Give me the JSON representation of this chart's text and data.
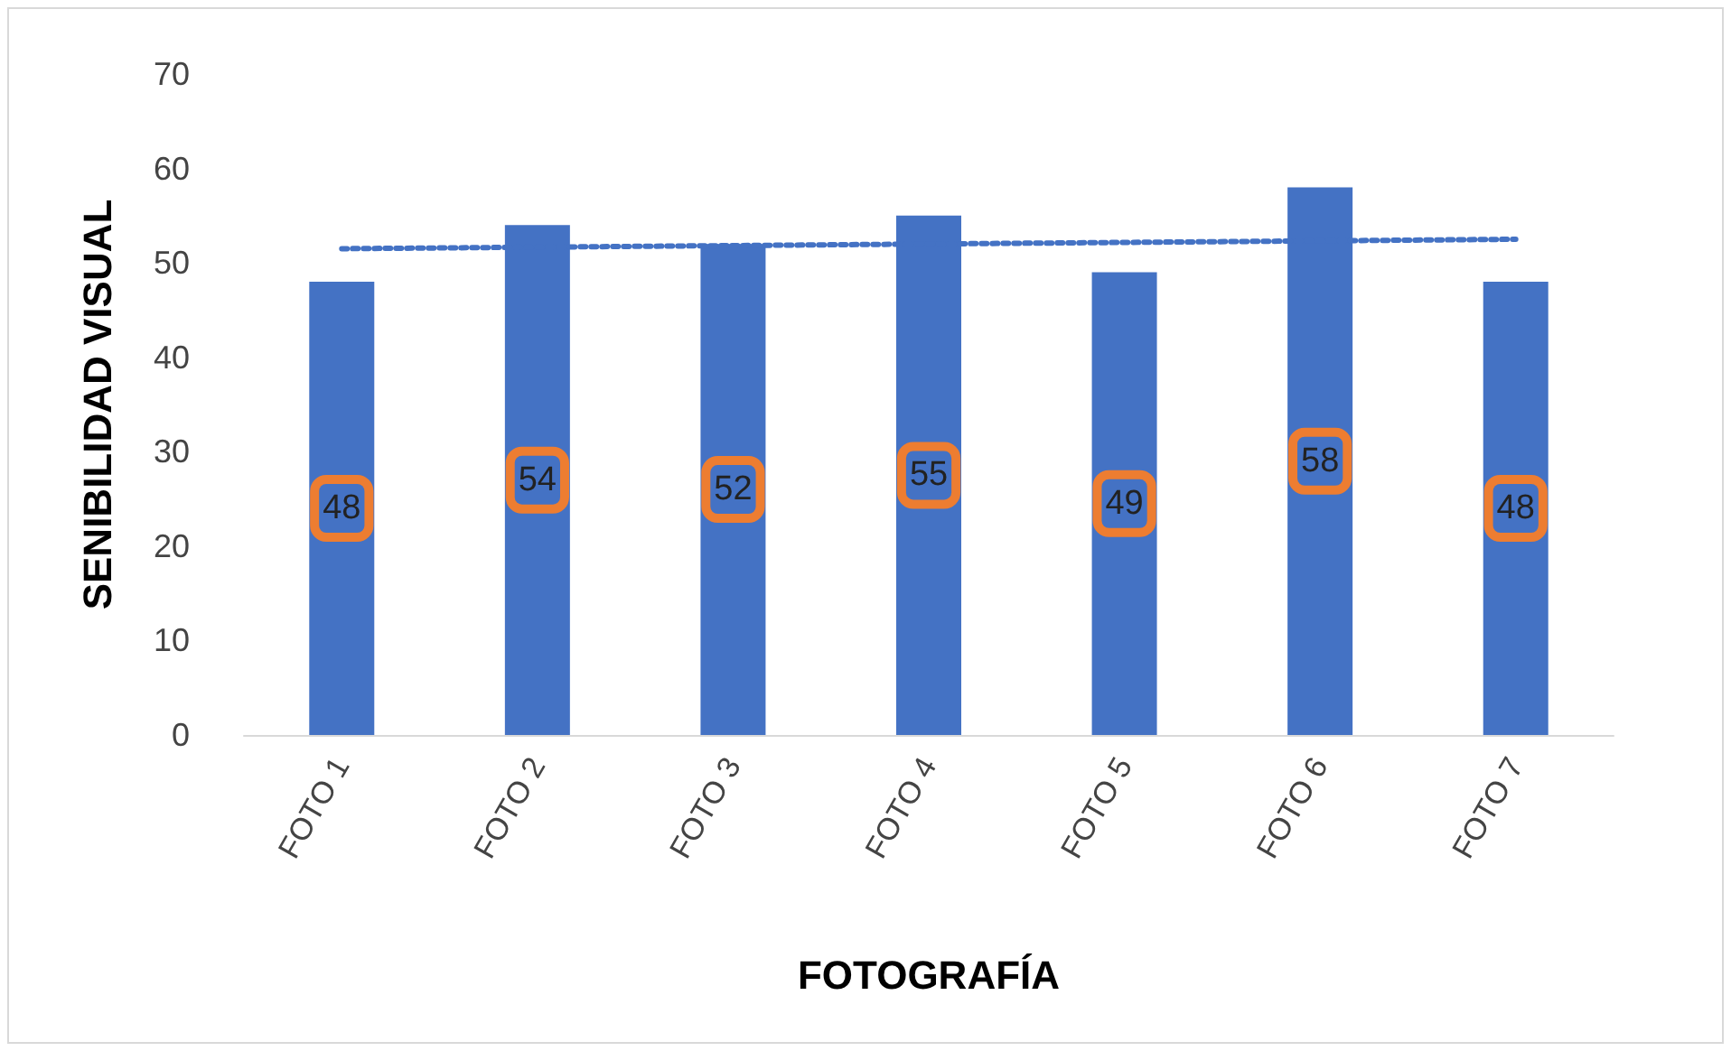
{
  "chart_data": {
    "type": "bar",
    "xlabel": "FOTOGRAFÍA",
    "ylabel": "SENIBILIDAD VISUAL",
    "categories": [
      "FOTO 1",
      "FOTO 2",
      "FOTO 3",
      "FOTO 4",
      "FOTO 5",
      "FOTO 6",
      "FOTO 7"
    ],
    "series": [
      {
        "color": "#4472c4",
        "values": [
          48,
          54,
          52,
          55,
          49,
          58,
          48
        ],
        "value_labels": [
          "48",
          "54",
          "52",
          "55",
          "49",
          "58",
          "48"
        ]
      },
      {
        "type": "line",
        "color": "#4472c4",
        "x": [
          "FOTO 1",
          "FOTO 7"
        ],
        "values": [
          51.5,
          52.5
        ],
        "line_style": "dotted",
        "marker": "none"
      }
    ],
    "ylim": [
      0,
      70
    ],
    "yticks": [
      0,
      10,
      20,
      30,
      40,
      50,
      60,
      70
    ],
    "grid": false
  }
}
